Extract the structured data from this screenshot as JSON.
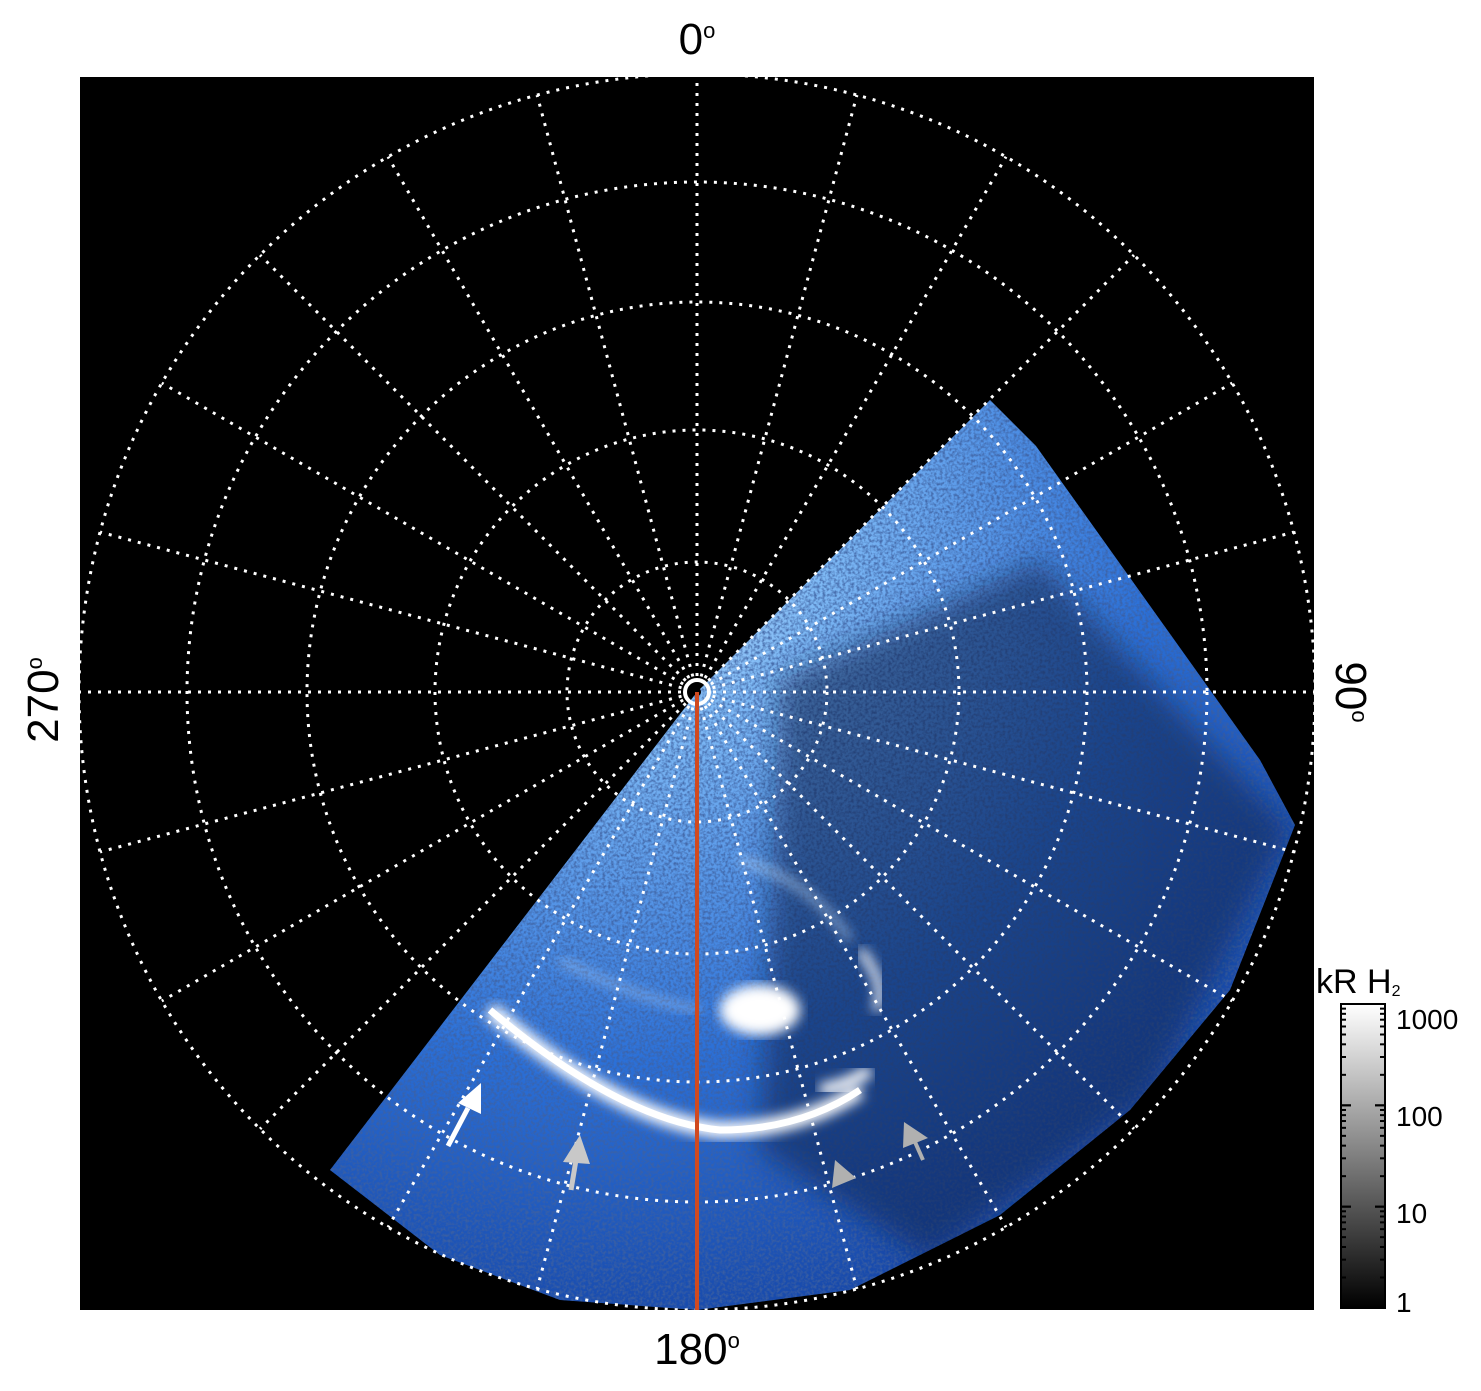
{
  "figure": {
    "angle_labels": {
      "top": "0",
      "right": "90",
      "bottom": "180",
      "left": "270",
      "degree_symbol": "o"
    },
    "colorbar": {
      "title_main": "kR H",
      "title_sub": "2",
      "tick_labels": [
        "1000",
        "100",
        "10",
        "1"
      ]
    },
    "colors": {
      "background": "#000000",
      "grid": "#ffffff",
      "meridian_line": "#d04a20",
      "emission_dim": "#1a50c8",
      "emission_mid": "#4a9cf0",
      "emission_bright": "#ffffff",
      "arrow_white": "#ffffff",
      "arrow_gray": "#c0c0c0"
    }
  }
}
